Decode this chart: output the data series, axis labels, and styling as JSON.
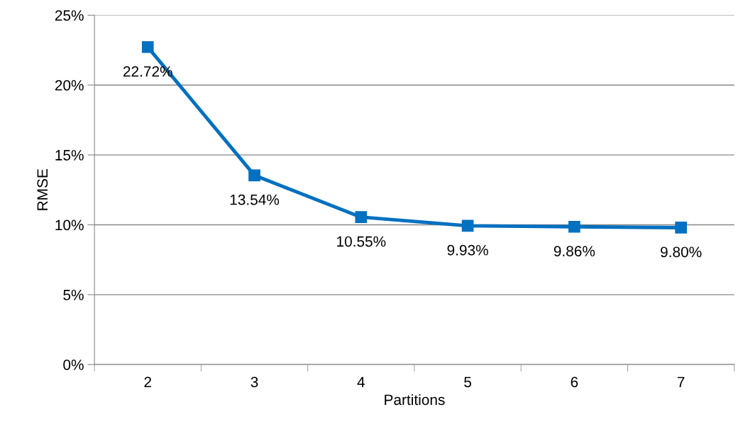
{
  "chart_data": {
    "type": "line",
    "xlabel": "Partitions",
    "ylabel": "RMSE",
    "categories": [
      "2",
      "3",
      "4",
      "5",
      "6",
      "7"
    ],
    "series": [
      {
        "color": "#0070c0",
        "values": [
          22.72,
          13.54,
          10.55,
          9.93,
          9.86,
          9.8
        ],
        "value_labels": [
          "22.72%",
          "13.54%",
          "10.55%",
          "9.93%",
          "9.86%",
          "9.80%"
        ]
      }
    ],
    "ylim": [
      0,
      25
    ],
    "yticks": [
      {
        "value": 0,
        "label": "0%"
      },
      {
        "value": 5,
        "label": "5%"
      },
      {
        "value": 10,
        "label": "10%"
      },
      {
        "value": 15,
        "label": "15%"
      },
      {
        "value": 20,
        "label": "20%"
      },
      {
        "value": 25,
        "label": "25%"
      }
    ],
    "grid": "y",
    "legend": false,
    "marker": "square",
    "line_style": "solid"
  }
}
